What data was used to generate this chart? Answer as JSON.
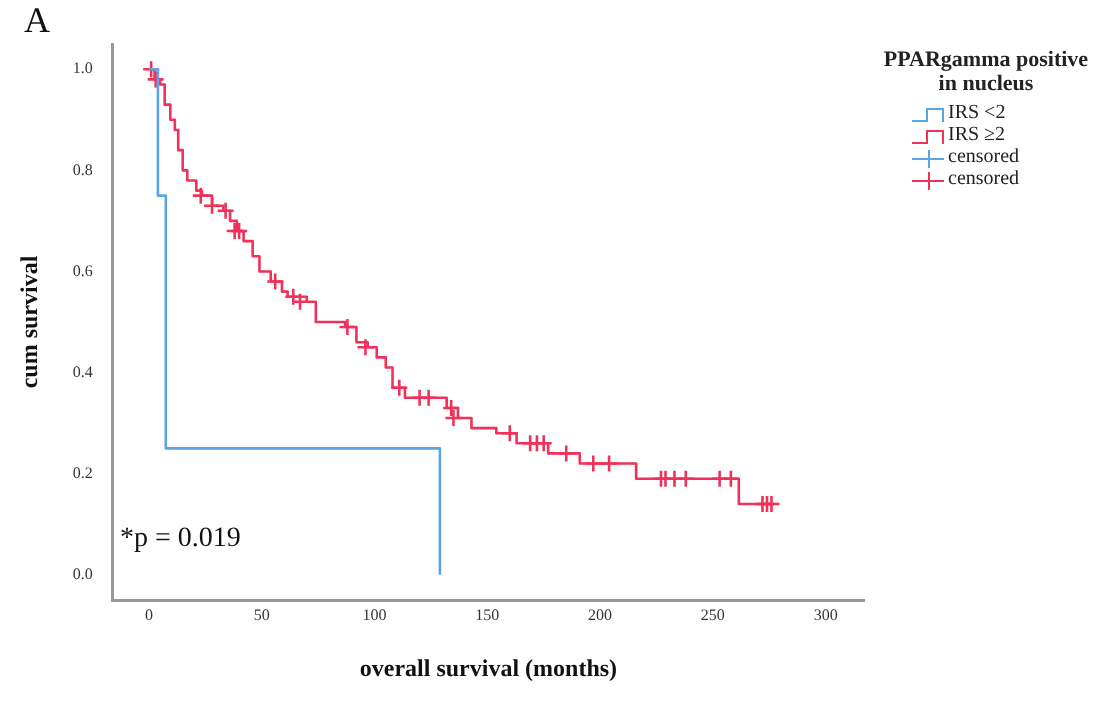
{
  "chart_data": {
    "type": "step",
    "xlabel": "overall survival (months)",
    "ylabel": "cum survival",
    "legend_title": "PPARgamma positive in nucleus",
    "legend": "right",
    "grid": false,
    "xlim": [
      -16,
      317
    ],
    "xticks": [
      0,
      50,
      100,
      150,
      200,
      250,
      300
    ],
    "ylim": [
      -0.05,
      1.05
    ],
    "yticks": [
      {
        "value": 0,
        "label": "0.0"
      },
      {
        "value": 0.2,
        "label": "0.2"
      },
      {
        "value": 0.4,
        "label": "0.4"
      },
      {
        "value": 0.6,
        "label": "0.6"
      },
      {
        "value": 0.8,
        "label": "0.8"
      },
      {
        "value": 1,
        "label": "1.0"
      }
    ],
    "annotations": [
      "A",
      "*p = 0.019"
    ],
    "series": [
      {
        "name": "IRS <2",
        "color": "#5ba4e6",
        "x": [
          0,
          4,
          7.5,
          129,
          129
        ],
        "values": [
          1,
          0.75,
          0.25,
          0,
          0
        ]
      },
      {
        "name": "IRS ≥2",
        "color": "#f0325a",
        "x": [
          0,
          2.5,
          5,
          7,
          9.5,
          11.5,
          13,
          15,
          17,
          21,
          23.5,
          28,
          33,
          36,
          39,
          42,
          46,
          49,
          54,
          59,
          61.5,
          70,
          74,
          87,
          92,
          97,
          101,
          105,
          108,
          113.5,
          126,
          132,
          137,
          143,
          154,
          163,
          177,
          191,
          216,
          261.5,
          276
        ],
        "values": [
          1,
          0.98,
          0.97,
          0.93,
          0.9,
          0.88,
          0.84,
          0.8,
          0.78,
          0.76,
          0.75,
          0.73,
          0.72,
          0.7,
          0.68,
          0.66,
          0.63,
          0.6,
          0.58,
          0.56,
          0.55,
          0.54,
          0.5,
          0.49,
          0.46,
          0.45,
          0.43,
          0.41,
          0.37,
          0.35,
          0.35,
          0.33,
          0.31,
          0.29,
          0.28,
          0.26,
          0.24,
          0.22,
          0.19,
          0.14,
          0.14
        ]
      },
      {
        "name": "censored",
        "type": "scatter",
        "marker": "cross",
        "color": "#5ba4e6"
      },
      {
        "name": "censored",
        "type": "scatter",
        "marker": "cross",
        "color": "#f0325a",
        "x": [
          1,
          3,
          23,
          28,
          34,
          38,
          40,
          56,
          64,
          67,
          88,
          96,
          111,
          120,
          124,
          134,
          135,
          160,
          169,
          172,
          175,
          185,
          197,
          204,
          227,
          229,
          233,
          238,
          253,
          258,
          272,
          274,
          276
        ],
        "values": [
          1,
          0.98,
          0.75,
          0.73,
          0.72,
          0.68,
          0.68,
          0.58,
          0.55,
          0.54,
          0.49,
          0.45,
          0.37,
          0.35,
          0.35,
          0.33,
          0.31,
          0.28,
          0.26,
          0.26,
          0.26,
          0.24,
          0.22,
          0.22,
          0.19,
          0.19,
          0.19,
          0.19,
          0.19,
          0.19,
          0.14,
          0.14,
          0.14
        ]
      }
    ]
  }
}
